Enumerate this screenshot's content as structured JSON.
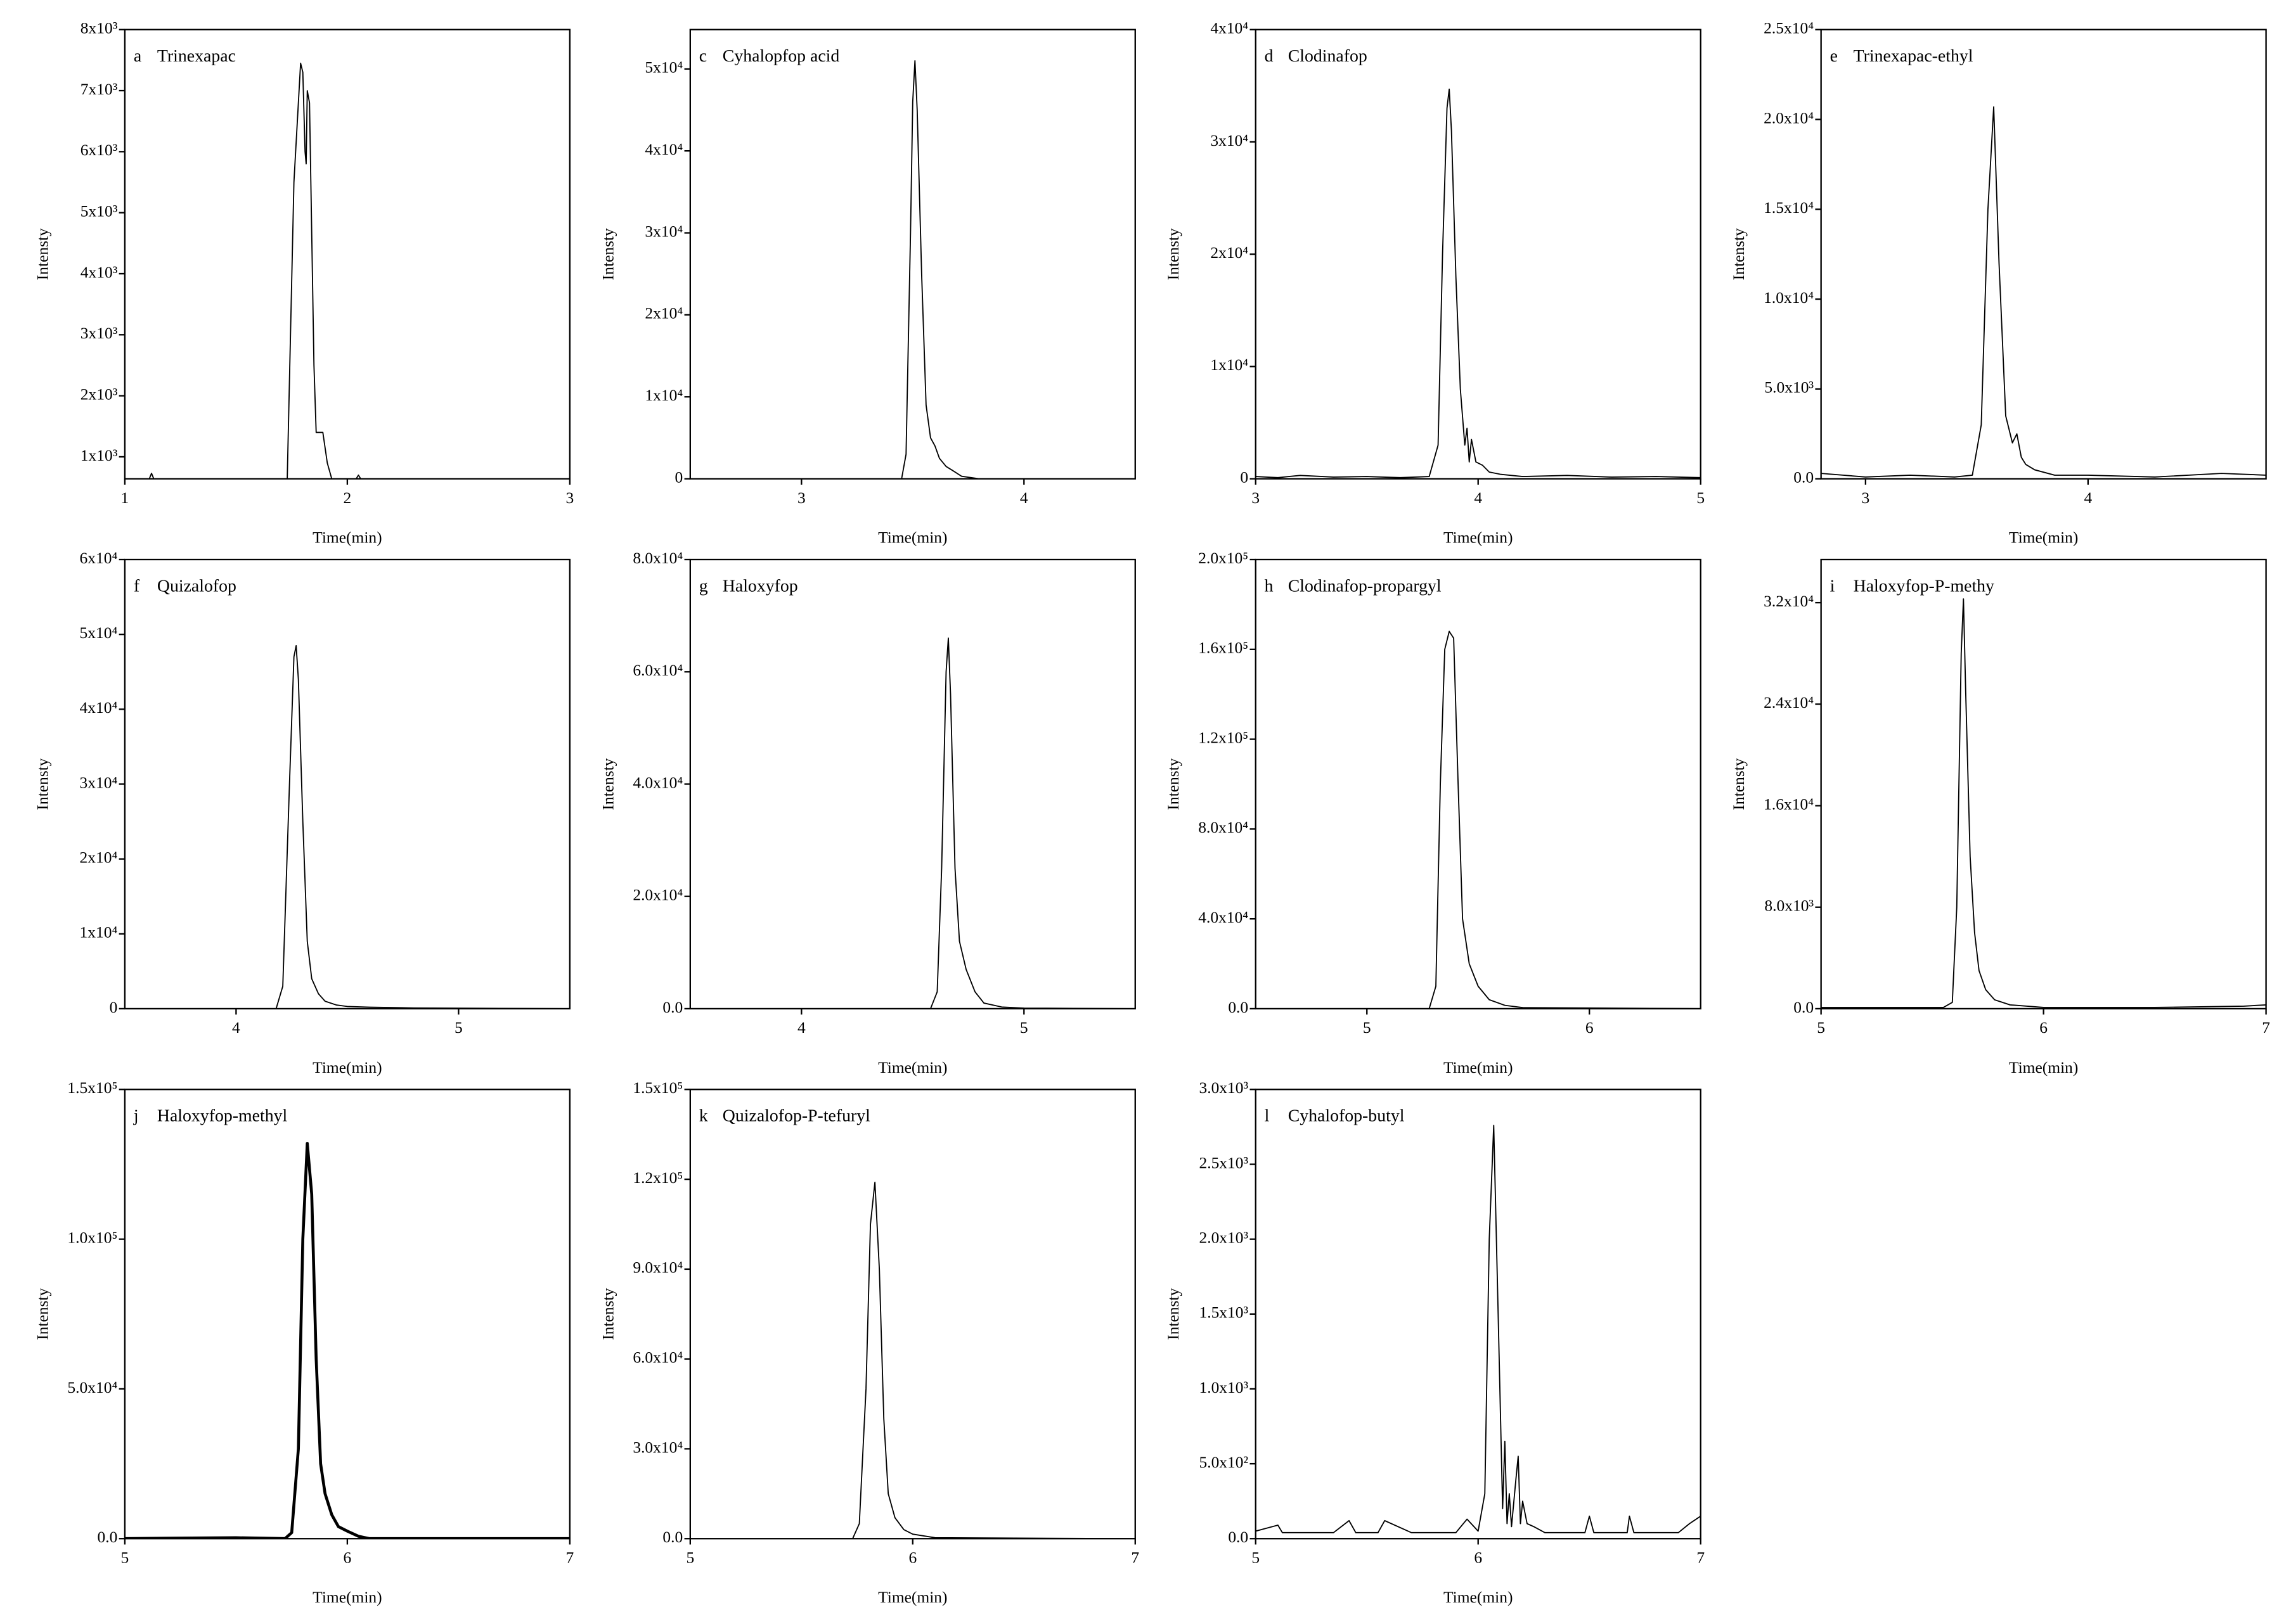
{
  "chart_data": [
    {
      "type": "line",
      "panel": "a",
      "title": "Trinexapac",
      "xlabel": "Time(min)",
      "ylabel": "Intensty",
      "color": "#000000",
      "line_width": 0.8,
      "xlim": [
        1,
        3
      ],
      "xticks": [
        1,
        2,
        3
      ],
      "ylim": [
        640,
        8000
      ],
      "yticks": [
        {
          "value": 1000,
          "label": "1x10³"
        },
        {
          "value": 2000,
          "label": "2x10³"
        },
        {
          "value": 3000,
          "label": "3x10³"
        },
        {
          "value": 4000,
          "label": "4x10³"
        },
        {
          "value": 5000,
          "label": "5x10³"
        },
        {
          "value": 6000,
          "label": "6x10³"
        },
        {
          "value": 7000,
          "label": "7x10³"
        },
        {
          "value": 8000,
          "label": "8x10³"
        }
      ],
      "x": [
        1.0,
        1.11,
        1.12,
        1.13,
        1.73,
        1.76,
        1.79,
        1.8,
        1.81,
        1.815,
        1.82,
        1.83,
        1.85,
        1.86,
        1.89,
        1.91,
        1.93,
        2.04,
        2.05,
        2.06,
        3.0
      ],
      "values": [
        640,
        640,
        730,
        640,
        640,
        5500,
        7450,
        7300,
        6000,
        5800,
        7000,
        6800,
        2500,
        1400,
        1400,
        900,
        640,
        640,
        700,
        640,
        640
      ]
    },
    {
      "type": "line",
      "panel": "c",
      "title": "Cyhalopfop acid",
      "xlabel": "Time(min)",
      "ylabel": "Intensty",
      "color": "#000000",
      "line_width": 0.8,
      "xlim": [
        2.5,
        4.5
      ],
      "xticks": [
        3,
        4
      ],
      "ylim": [
        0,
        54800
      ],
      "yticks": [
        0,
        {
          "value": 10000,
          "label": "1x10⁴"
        },
        {
          "value": 20000,
          "label": "2x10⁴"
        },
        {
          "value": 30000,
          "label": "3x10⁴"
        },
        {
          "value": 40000,
          "label": "4x10⁴"
        },
        {
          "value": 50000,
          "label": "5x10⁴"
        }
      ],
      "x": [
        2.5,
        3.45,
        3.47,
        3.49,
        3.5,
        3.51,
        3.52,
        3.54,
        3.56,
        3.58,
        3.6,
        3.62,
        3.65,
        3.68,
        3.72,
        3.8,
        4.5
      ],
      "values": [
        0,
        0,
        3000,
        30000,
        46000,
        51000,
        45000,
        25000,
        9000,
        5000,
        4000,
        2500,
        1500,
        1000,
        300,
        0,
        0
      ]
    },
    {
      "type": "line",
      "panel": "d",
      "title": "Clodinafop",
      "xlabel": "Time(min)",
      "ylabel": "Intensty",
      "color": "#000000",
      "line_width": 0.8,
      "xlim": [
        3,
        5
      ],
      "xticks": [
        3,
        4,
        5
      ],
      "ylim": [
        0,
        40000
      ],
      "yticks": [
        0,
        {
          "value": 10000,
          "label": "1x10⁴"
        },
        {
          "value": 20000,
          "label": "2x10⁴"
        },
        {
          "value": 30000,
          "label": "3x10⁴"
        },
        {
          "value": 40000,
          "label": "4x10⁴"
        }
      ],
      "x": [
        3,
        3.1,
        3.2,
        3.35,
        3.5,
        3.65,
        3.78,
        3.82,
        3.84,
        3.86,
        3.87,
        3.88,
        3.9,
        3.92,
        3.94,
        3.95,
        3.96,
        3.97,
        3.99,
        4.02,
        4.05,
        4.1,
        4.2,
        4.4,
        4.6,
        4.8,
        5
      ],
      "values": [
        200,
        100,
        300,
        150,
        200,
        100,
        200,
        3000,
        20000,
        33000,
        34700,
        31000,
        18000,
        8000,
        3000,
        4500,
        1500,
        3500,
        1500,
        1200,
        600,
        400,
        200,
        300,
        150,
        200,
        100
      ]
    },
    {
      "type": "line",
      "panel": "e",
      "title": "Trinexapac-ethyl",
      "xlabel": "Time(min)",
      "ylabel": "Intensty",
      "color": "#000000",
      "line_width": 0.8,
      "xlim": [
        2.8,
        4.8
      ],
      "xticks": [
        3,
        4
      ],
      "ylim": [
        0,
        25000
      ],
      "yticks": [
        {
          "value": 0,
          "label": "0.0"
        },
        {
          "value": 5000,
          "label": "5.0x10³"
        },
        {
          "value": 10000,
          "label": "1.0x10⁴"
        },
        {
          "value": 15000,
          "label": "1.5x10⁴"
        },
        {
          "value": 20000,
          "label": "2.0x10⁴"
        },
        {
          "value": 25000,
          "label": "2.5x10⁴"
        }
      ],
      "x": [
        2.8,
        3.0,
        3.2,
        3.4,
        3.48,
        3.52,
        3.55,
        3.576,
        3.6,
        3.63,
        3.66,
        3.68,
        3.7,
        3.72,
        3.76,
        3.85,
        4.0,
        4.3,
        4.6,
        4.8
      ],
      "values": [
        300,
        100,
        200,
        100,
        200,
        3000,
        15000,
        20700,
        12000,
        3500,
        2000,
        2500,
        1200,
        800,
        500,
        200,
        200,
        100,
        300,
        200
      ]
    },
    {
      "type": "line",
      "panel": "f",
      "title": "Quizalofop",
      "xlabel": "Time(min)",
      "ylabel": "Intensty",
      "color": "#000000",
      "line_width": 0.8,
      "xlim": [
        3.5,
        5.5
      ],
      "xticks": [
        4,
        5
      ],
      "ylim": [
        0,
        60000
      ],
      "yticks": [
        0,
        {
          "value": 10000,
          "label": "1x10⁴"
        },
        {
          "value": 20000,
          "label": "2x10⁴"
        },
        {
          "value": 30000,
          "label": "3x10⁴"
        },
        {
          "value": 40000,
          "label": "4x10⁴"
        },
        {
          "value": 50000,
          "label": "5x10⁴"
        },
        {
          "value": 60000,
          "label": "6x10⁴"
        }
      ],
      "x": [
        3.5,
        4.18,
        4.21,
        4.24,
        4.26,
        4.27,
        4.28,
        4.3,
        4.32,
        4.34,
        4.37,
        4.4,
        4.45,
        4.5,
        4.6,
        4.8,
        5.5
      ],
      "values": [
        0,
        0,
        3000,
        30000,
        47000,
        48500,
        44000,
        25000,
        9000,
        4000,
        2000,
        1000,
        500,
        300,
        200,
        100,
        0
      ]
    },
    {
      "type": "line",
      "panel": "g",
      "title": "Haloxyfop",
      "xlabel": "Time(min)",
      "ylabel": "Intensty",
      "color": "#000000",
      "line_width": 0.8,
      "xlim": [
        3.5,
        5.5
      ],
      "xticks": [
        4,
        5
      ],
      "ylim": [
        0,
        80000
      ],
      "yticks": [
        {
          "value": 0,
          "label": "0.0"
        },
        {
          "value": 20000,
          "label": "2.0x10⁴"
        },
        {
          "value": 40000,
          "label": "4.0x10⁴"
        },
        {
          "value": 60000,
          "label": "6.0x10⁴"
        },
        {
          "value": 80000,
          "label": "8.0x10⁴"
        }
      ],
      "x": [
        3.5,
        4.58,
        4.61,
        4.63,
        4.65,
        4.66,
        4.67,
        4.69,
        4.71,
        4.74,
        4.78,
        4.82,
        4.9,
        5.0,
        5.5
      ],
      "values": [
        0,
        0,
        3000,
        25000,
        60000,
        66000,
        56000,
        25000,
        12000,
        7000,
        3000,
        1000,
        300,
        100,
        0
      ]
    },
    {
      "type": "line",
      "panel": "h",
      "title": "Clodinafop-propargyl",
      "xlabel": "Time(min)",
      "ylabel": "Intensty",
      "color": "#000000",
      "line_width": 0.8,
      "xlim": [
        4.5,
        6.5
      ],
      "xticks": [
        5,
        6
      ],
      "ylim": [
        0,
        200000
      ],
      "yticks": [
        {
          "value": 0,
          "label": "0.0"
        },
        {
          "value": 40000,
          "label": "4.0x10⁴"
        },
        {
          "value": 80000,
          "label": "8.0x10⁴"
        },
        {
          "value": 120000,
          "label": "1.2x10⁵"
        },
        {
          "value": 160000,
          "label": "1.6x10⁵"
        },
        {
          "value": 200000,
          "label": "2.0x10⁵"
        }
      ],
      "x": [
        4.5,
        5.28,
        5.31,
        5.33,
        5.35,
        5.37,
        5.39,
        5.41,
        5.43,
        5.46,
        5.5,
        5.55,
        5.62,
        5.7,
        6.5
      ],
      "values": [
        0,
        0,
        10000,
        100000,
        160000,
        168000,
        165000,
        100000,
        40000,
        20000,
        10000,
        4000,
        1500,
        500,
        0
      ]
    },
    {
      "type": "line",
      "panel": "i",
      "title": "Haloxyfop-P-methy",
      "xlabel": "Time(min)",
      "ylabel": "Intensty",
      "color": "#000000",
      "line_width": 0.8,
      "xlim": [
        5,
        7
      ],
      "xticks": [
        5,
        6,
        7
      ],
      "ylim": [
        0,
        35400
      ],
      "yticks": [
        {
          "value": 0,
          "label": "0.0"
        },
        {
          "value": 8000,
          "label": "8.0x10³"
        },
        {
          "value": 16000,
          "label": "1.6x10⁴"
        },
        {
          "value": 24000,
          "label": "2.4x10⁴"
        },
        {
          "value": 32000,
          "label": "3.2x10⁴"
        }
      ],
      "x": [
        5,
        5.3,
        5.55,
        5.59,
        5.61,
        5.63,
        5.64,
        5.65,
        5.67,
        5.69,
        5.71,
        5.74,
        5.78,
        5.85,
        6.0,
        6.5,
        6.9,
        7
      ],
      "values": [
        100,
        100,
        100,
        500,
        8000,
        28000,
        32300,
        25000,
        12000,
        6000,
        3000,
        1500,
        700,
        300,
        100,
        100,
        200,
        300
      ]
    },
    {
      "type": "line",
      "panel": "j",
      "title": "Haloxyfop-methyl",
      "xlabel": "Time(min)",
      "ylabel": "Intensty",
      "color": "#000000",
      "line_width": 2,
      "xlim": [
        5,
        7
      ],
      "xticks": [
        5,
        6,
        7
      ],
      "ylim": [
        0,
        150000
      ],
      "yticks": [
        {
          "value": 0,
          "label": "0.0"
        },
        {
          "value": 50000,
          "label": "5.0x10⁴"
        },
        {
          "value": 100000,
          "label": "1.0x10⁵"
        },
        {
          "value": 150000,
          "label": "1.5x10⁵"
        }
      ],
      "x": [
        5,
        5.3,
        5.5,
        5.72,
        5.75,
        5.78,
        5.8,
        5.82,
        5.84,
        5.86,
        5.88,
        5.9,
        5.93,
        5.96,
        6.0,
        6.05,
        6.1,
        7
      ],
      "values": [
        0,
        200,
        300,
        0,
        2000,
        30000,
        100000,
        132000,
        115000,
        60000,
        25000,
        15000,
        8000,
        4000,
        2500,
        800,
        0,
        0
      ]
    },
    {
      "type": "line",
      "panel": "k",
      "title": "Quizalofop-P-tefuryl",
      "xlabel": "Time(min)",
      "ylabel": "Intensty",
      "color": "#000000",
      "line_width": 0.8,
      "xlim": [
        5,
        7
      ],
      "xticks": [
        5,
        6,
        7
      ],
      "ylim": [
        0,
        150000
      ],
      "yticks": [
        {
          "value": 0,
          "label": "0.0"
        },
        {
          "value": 30000,
          "label": "3.0x10⁴"
        },
        {
          "value": 60000,
          "label": "6.0x10⁴"
        },
        {
          "value": 90000,
          "label": "9.0x10⁴"
        },
        {
          "value": 120000,
          "label": "1.2x10⁵"
        },
        {
          "value": 150000,
          "label": "1.5x10⁵"
        }
      ],
      "x": [
        5,
        5.73,
        5.76,
        5.79,
        5.81,
        5.83,
        5.85,
        5.87,
        5.89,
        5.92,
        5.96,
        6.0,
        6.1,
        7
      ],
      "values": [
        0,
        0,
        5000,
        50000,
        105000,
        119000,
        90000,
        40000,
        15000,
        7000,
        3000,
        1500,
        300,
        0
      ]
    },
    {
      "type": "line",
      "panel": "l",
      "title": "Cyhalofop-butyl",
      "xlabel": "Time(min)",
      "ylabel": "Intensty",
      "color": "#000000",
      "line_width": 0.8,
      "xlim": [
        5,
        7
      ],
      "xticks": [
        5,
        6,
        7
      ],
      "ylim": [
        0,
        3000
      ],
      "yticks": [
        {
          "value": 0,
          "label": "0.0"
        },
        {
          "value": 500,
          "label": "5.0x10²"
        },
        {
          "value": 1000,
          "label": "1.0x10³"
        },
        {
          "value": 1500,
          "label": "1.5x10³"
        },
        {
          "value": 2000,
          "label": "2.0x10³"
        },
        {
          "value": 2500,
          "label": "2.5x10³"
        },
        {
          "value": 3000,
          "label": "3.0x10³"
        }
      ],
      "x": [
        5,
        5.1,
        5.12,
        5.2,
        5.35,
        5.42,
        5.45,
        5.55,
        5.58,
        5.7,
        5.9,
        5.95,
        6.0,
        6.03,
        6.05,
        6.07,
        6.09,
        6.11,
        6.12,
        6.13,
        6.14,
        6.15,
        6.17,
        6.18,
        6.19,
        6.2,
        6.22,
        6.25,
        6.3,
        6.48,
        6.5,
        6.52,
        6.6,
        6.67,
        6.68,
        6.7,
        6.9,
        6.95,
        7
      ],
      "values": [
        50,
        90,
        40,
        40,
        40,
        120,
        40,
        40,
        120,
        40,
        40,
        130,
        50,
        300,
        2000,
        2760,
        1500,
        200,
        650,
        100,
        300,
        80,
        400,
        550,
        100,
        250,
        100,
        80,
        40,
        40,
        150,
        40,
        40,
        40,
        150,
        40,
        40,
        100,
        150
      ]
    }
  ]
}
